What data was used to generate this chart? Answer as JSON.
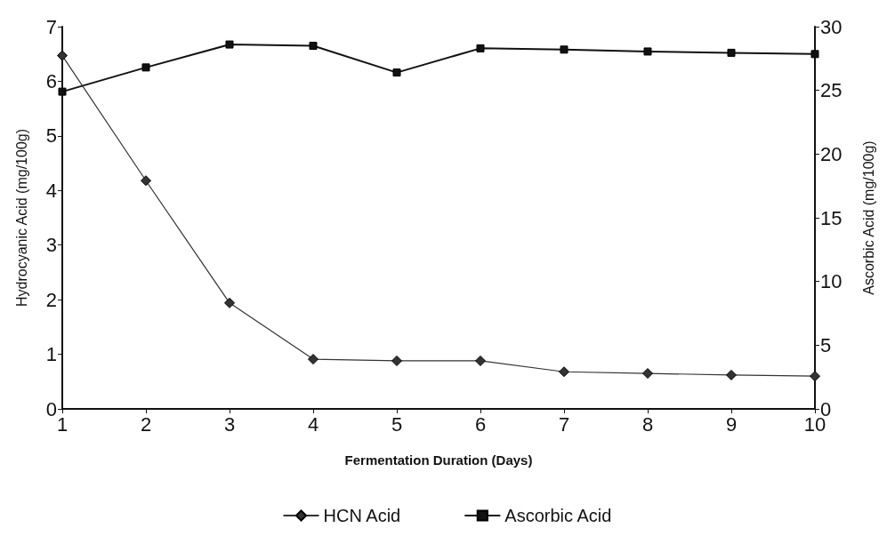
{
  "chart_data": {
    "type": "line",
    "xlabel": "Fermentation Duration (Days)",
    "ylabel": "Hydrocyanic Acid (mg/100g)",
    "y2label": "Ascorbic Acid (mg/100g)",
    "x": [
      1,
      2,
      3,
      4,
      5,
      6,
      7,
      8,
      9,
      10
    ],
    "xlim": [
      1,
      10
    ],
    "xticks": [
      1,
      2,
      3,
      4,
      5,
      6,
      7,
      8,
      9,
      10
    ],
    "ylim": [
      0,
      7
    ],
    "yticks": [
      0,
      1,
      2,
      3,
      4,
      5,
      6,
      7
    ],
    "y2lim": [
      0,
      30
    ],
    "y2ticks": [
      0,
      5,
      10,
      15,
      20,
      25,
      30
    ],
    "series": [
      {
        "name": "HCN Acid",
        "color": "#333333",
        "marker": "diamond",
        "values": [
          6.47,
          4.18,
          1.94,
          0.91,
          0.88,
          0.88,
          0.68,
          0.65,
          0.62,
          0.6
        ]
      },
      {
        "name": "Ascorbic Acid",
        "color": "#111111",
        "marker": "square",
        "axis": "y2",
        "values": [
          24.9,
          26.8,
          28.6,
          28.5,
          26.4,
          28.3,
          28.2,
          28.05,
          27.95,
          27.85
        ]
      }
    ],
    "grid": false,
    "legend": "bottom",
    "line_style": "solid"
  }
}
